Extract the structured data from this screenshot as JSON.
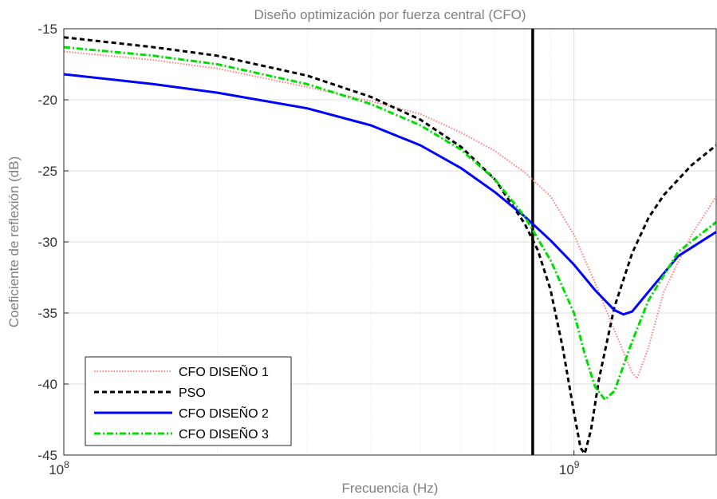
{
  "chart_data": {
    "type": "line",
    "title": "Diseño optimización por fuerza central (CFO)",
    "xlabel": "Frecuencia (Hz)",
    "ylabel": "Coeficiente de reflexión (dB)",
    "x_scale": "log",
    "xlim": [
      100000000,
      1900000000
    ],
    "ylim": [
      -45,
      -15
    ],
    "x_ticks": [
      {
        "value": 100000000,
        "base": "10",
        "exp": "8"
      },
      {
        "value": 1000000000,
        "base": "10",
        "exp": "9"
      }
    ],
    "y_ticks": [
      -15,
      -20,
      -25,
      -30,
      -35,
      -40,
      -45
    ],
    "grid": true,
    "legend_position": "bottom-left",
    "vertical_line_x": 830000000,
    "series": [
      {
        "name": "CFO DISEÑO 1",
        "color": "#ff8080",
        "style": "dotted",
        "points": [
          [
            100000000,
            -16.6
          ],
          [
            150000000,
            -17.2
          ],
          [
            200000000,
            -17.8
          ],
          [
            300000000,
            -19.1
          ],
          [
            400000000,
            -20.1
          ],
          [
            500000000,
            -21.0
          ],
          [
            600000000,
            -22.3
          ],
          [
            700000000,
            -23.6
          ],
          [
            800000000,
            -25.1
          ],
          [
            900000000,
            -26.8
          ],
          [
            1000000000,
            -29.5
          ],
          [
            1100000000,
            -32.9
          ],
          [
            1200000000,
            -36.2
          ],
          [
            1300000000,
            -39.2
          ],
          [
            1330000000,
            -39.6
          ],
          [
            1400000000,
            -37.4
          ],
          [
            1500000000,
            -33.5
          ],
          [
            1700000000,
            -29.5
          ],
          [
            1900000000,
            -26.8
          ]
        ]
      },
      {
        "name": "PSO",
        "color": "#000000",
        "style": "dashed",
        "points": [
          [
            100000000,
            -15.6
          ],
          [
            150000000,
            -16.3
          ],
          [
            200000000,
            -16.9
          ],
          [
            300000000,
            -18.3
          ],
          [
            400000000,
            -19.8
          ],
          [
            500000000,
            -21.4
          ],
          [
            600000000,
            -23.3
          ],
          [
            700000000,
            -25.6
          ],
          [
            800000000,
            -28.7
          ],
          [
            850000000,
            -30.6
          ],
          [
            900000000,
            -33.4
          ],
          [
            950000000,
            -37.4
          ],
          [
            1000000000,
            -42.0
          ],
          [
            1030000000,
            -44.5
          ],
          [
            1050000000,
            -44.9
          ],
          [
            1080000000,
            -43.2
          ],
          [
            1120000000,
            -39.6
          ],
          [
            1200000000,
            -34.6
          ],
          [
            1300000000,
            -30.8
          ],
          [
            1400000000,
            -28.3
          ],
          [
            1500000000,
            -26.7
          ],
          [
            1700000000,
            -24.6
          ],
          [
            1900000000,
            -23.2
          ]
        ]
      },
      {
        "name": "CFO DISEÑO 2",
        "color": "#0000ff",
        "style": "solid",
        "points": [
          [
            100000000,
            -18.2
          ],
          [
            150000000,
            -18.9
          ],
          [
            200000000,
            -19.5
          ],
          [
            300000000,
            -20.6
          ],
          [
            400000000,
            -21.8
          ],
          [
            500000000,
            -23.2
          ],
          [
            600000000,
            -24.8
          ],
          [
            700000000,
            -26.5
          ],
          [
            800000000,
            -28.2
          ],
          [
            900000000,
            -29.9
          ],
          [
            1000000000,
            -31.6
          ],
          [
            1100000000,
            -33.4
          ],
          [
            1200000000,
            -34.8
          ],
          [
            1250000000,
            -35.1
          ],
          [
            1300000000,
            -34.9
          ],
          [
            1400000000,
            -33.5
          ],
          [
            1600000000,
            -31.0
          ],
          [
            1900000000,
            -29.3
          ]
        ]
      },
      {
        "name": "CFO DISEÑO 3",
        "color": "#00dd00",
        "style": "dashdot",
        "points": [
          [
            100000000,
            -16.3
          ],
          [
            150000000,
            -16.9
          ],
          [
            200000000,
            -17.5
          ],
          [
            300000000,
            -18.9
          ],
          [
            400000000,
            -20.3
          ],
          [
            500000000,
            -21.8
          ],
          [
            600000000,
            -23.5
          ],
          [
            700000000,
            -25.6
          ],
          [
            800000000,
            -28.2
          ],
          [
            900000000,
            -31.3
          ],
          [
            1000000000,
            -35.0
          ],
          [
            1050000000,
            -37.9
          ],
          [
            1100000000,
            -40.2
          ],
          [
            1150000000,
            -41.1
          ],
          [
            1200000000,
            -40.5
          ],
          [
            1300000000,
            -37.0
          ],
          [
            1400000000,
            -34.1
          ],
          [
            1600000000,
            -30.7
          ],
          [
            1900000000,
            -28.6
          ]
        ]
      }
    ]
  }
}
